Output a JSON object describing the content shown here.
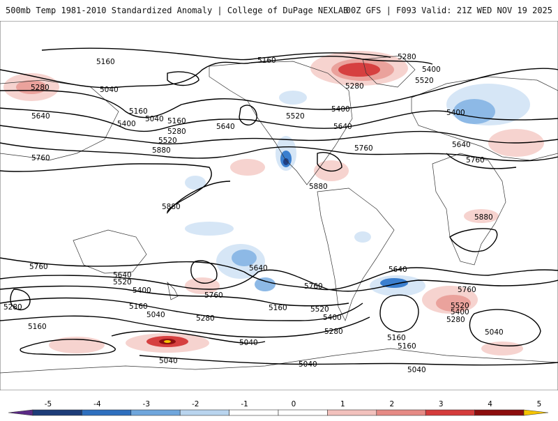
{
  "header": {
    "title_left": "500mb Temp 1981-2010 Standardized Anomaly | College of DuPage NEXLAB",
    "title_right": "00Z GFS | F093 Valid: 21Z WED NOV 19 2025"
  },
  "contour_labels": [
    "5160",
    "5160",
    "5040",
    "5280",
    "5160",
    "5640",
    "5400",
    "5160",
    "5040",
    "5280",
    "5520",
    "5760",
    "5880",
    "5640",
    "5400",
    "5520",
    "5280",
    "5280",
    "5400",
    "5520",
    "5400",
    "5640",
    "5760",
    "5640",
    "5760",
    "5880",
    "5880",
    "5880",
    "5760",
    "5640",
    "5520",
    "5400",
    "5160",
    "5040",
    "5280",
    "5160",
    "5640",
    "5760",
    "5760",
    "5160",
    "5520",
    "5400",
    "5280",
    "5040",
    "5040",
    "5160",
    "5280",
    "5640",
    "5760",
    "5520",
    "5400",
    "5280",
    "5040",
    "5040",
    "5040",
    "5160"
  ],
  "colorbar": {
    "ticks": [
      "-5",
      "-4",
      "-3",
      "-2",
      "-1",
      "0",
      "1",
      "2",
      "3",
      "4",
      "5"
    ],
    "colors": [
      "#5b2a86",
      "#1d3c78",
      "#2e6fbe",
      "#6fa6dc",
      "#b9d4ee",
      "#ffffff",
      "#ffffff",
      "#f2c1bd",
      "#e58a85",
      "#d43b3b",
      "#8c0d0d",
      "#f5c400"
    ]
  },
  "colors": {
    "contour": "#000000",
    "coast": "#333333",
    "warm_light": "#f6d3cf",
    "warm_mid": "#eaa29c",
    "warm_strong": "#d64040",
    "warm_extreme": "#8b0f0f",
    "cold_light": "#d6e6f6",
    "cold_mid": "#8db9e6",
    "cold_strong": "#3b7fcf",
    "cold_extreme": "#1e3f85"
  }
}
